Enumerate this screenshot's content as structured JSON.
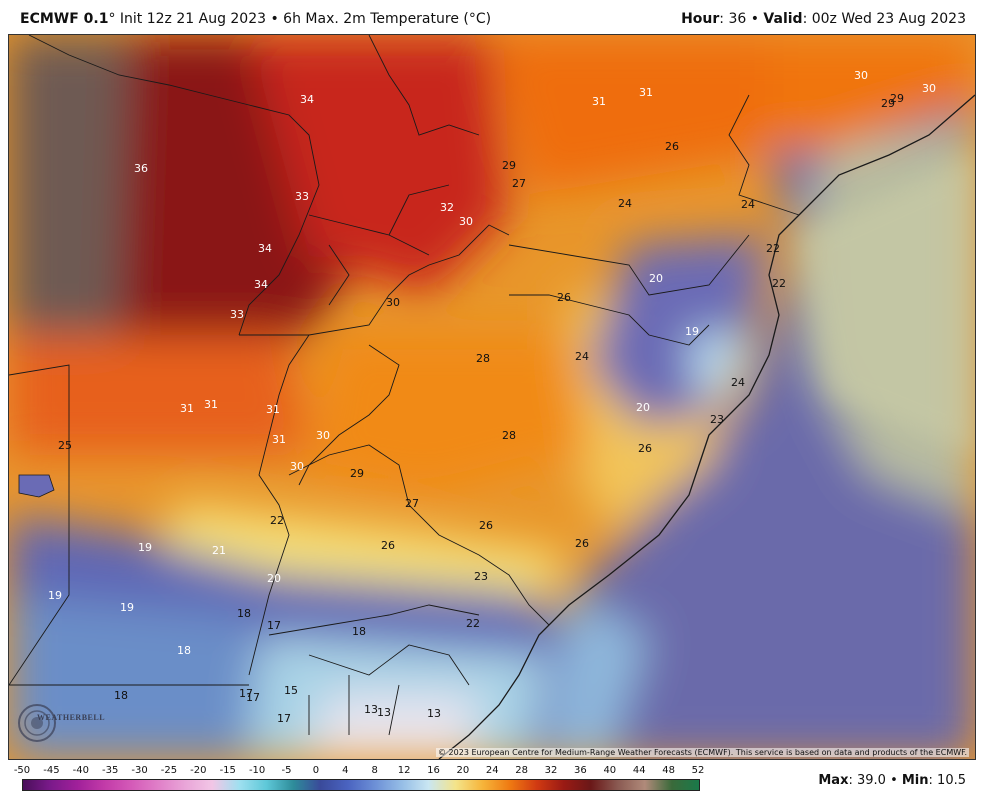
{
  "header": {
    "model": "ECMWF 0.1",
    "init": "° Init 12z 21 Aug 2023 • 6h Max. 2m Temperature (°C)",
    "hour_label": "Hour",
    "hour_value": ": 36 • ",
    "valid_label": "Valid",
    "valid_value": ": 00z Wed 23 Aug 2023"
  },
  "map": {
    "copyright": "© 2023 European Centre for Medium-Range Weather Forecasts (ECMWF). This service is based on data and products of the ECMWF.",
    "logo_text": "WEATHERBELL",
    "temperature_labels": [
      "34",
      "36",
      "33",
      "34",
      "34",
      "33",
      "31",
      "31",
      "31",
      "31",
      "30",
      "30",
      "25",
      "32",
      "30",
      "29",
      "27",
      "31",
      "31",
      "26",
      "30",
      "29",
      "29",
      "30",
      "24",
      "24",
      "22",
      "20",
      "22",
      "26",
      "19",
      "24",
      "28",
      "24",
      "20",
      "23",
      "28",
      "26",
      "26",
      "29",
      "27",
      "26",
      "26",
      "22",
      "21",
      "19",
      "19",
      "19",
      "20",
      "18",
      "18",
      "17",
      "18",
      "23",
      "22",
      "18",
      "17",
      "17",
      "15",
      "17",
      "13",
      "13",
      "13",
      "30"
    ]
  },
  "colorbar": {
    "ticks": [
      "-50",
      "-45",
      "-40",
      "-35",
      "-30",
      "-25",
      "-20",
      "-15",
      "-10",
      "-5",
      "0",
      "4",
      "8",
      "12",
      "16",
      "20",
      "24",
      "28",
      "32",
      "36",
      "40",
      "44",
      "48",
      "52"
    ],
    "max_label": "Max",
    "max_value": ": 39.0 • ",
    "min_label": "Min",
    "min_value": ": 10.5"
  },
  "colors": {
    "hot_dark": "#5a0e0e",
    "hot": "#c0201a",
    "orange": "#f07b14",
    "yellow": "#f4d34a",
    "cool": "#5a5bb0",
    "cold": "#bfe3f2",
    "brown": "#6e5a52",
    "ocean": "#c5c9b0"
  }
}
